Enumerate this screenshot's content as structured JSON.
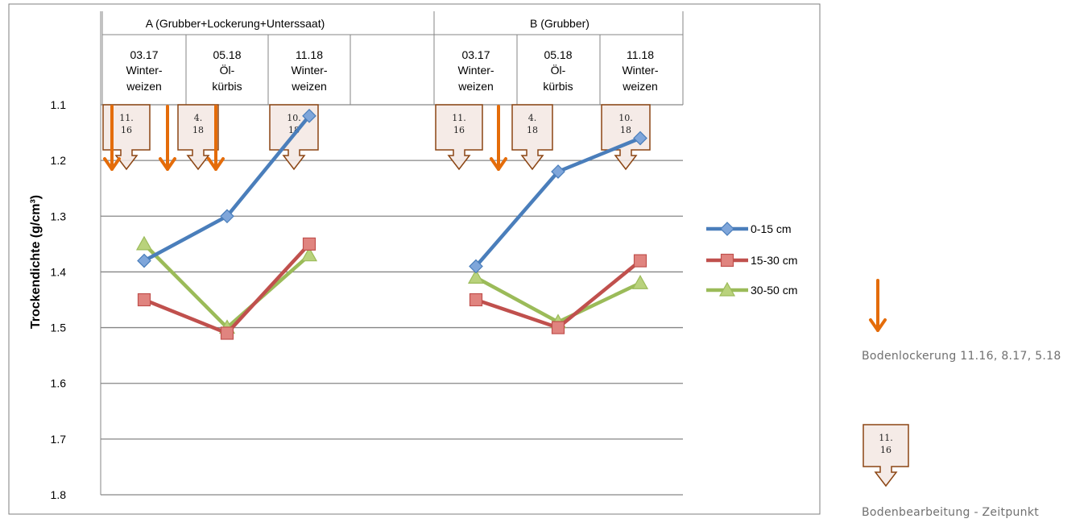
{
  "chart_data": {
    "type": "line",
    "ylabel": "Trockendichte (g/cm³)",
    "ylim": [
      1.8,
      1.1
    ],
    "y_reversed": true,
    "yticks": [
      "1.1",
      "1.2",
      "1.3",
      "1.4",
      "1.5",
      "1.6",
      "1.7",
      "1.8"
    ],
    "grid": true,
    "legend_position": "right",
    "groups": [
      {
        "title": "A (Grubber+Lockerung+Unterssaat)",
        "categories": [
          {
            "date": "03.17",
            "crop_line1": "Winter-",
            "crop_line2": "weizen"
          },
          {
            "date": "05.18",
            "crop_line1": "Öl-",
            "crop_line2": "kürbis"
          },
          {
            "date": "11.18",
            "crop_line1": "Winter-",
            "crop_line2": "weizen"
          }
        ],
        "tillage_markers": [
          {
            "line1": "11.",
            "line2": "16"
          },
          {
            "line1": "4.",
            "line2": "18"
          },
          {
            "line1": "10.",
            "line2": "18"
          }
        ]
      },
      {
        "title": "B (Grubber)",
        "categories": [
          {
            "date": "03.17",
            "crop_line1": "Winter-",
            "crop_line2": "weizen"
          },
          {
            "date": "05.18",
            "crop_line1": "Öl-",
            "crop_line2": "kürbis"
          },
          {
            "date": "11.18",
            "crop_line1": "Winter-",
            "crop_line2": "weizen"
          }
        ],
        "tillage_markers": [
          {
            "line1": "11.",
            "line2": "16"
          },
          {
            "line1": "4.",
            "line2": "18"
          },
          {
            "line1": "10.",
            "line2": "18"
          }
        ]
      }
    ],
    "series": [
      {
        "name": "0-15 cm",
        "color": "#4A7EBB",
        "marker": "diamond",
        "values_A": [
          1.38,
          1.3,
          1.12
        ],
        "values_B": [
          1.39,
          1.22,
          1.16
        ]
      },
      {
        "name": "15-30 cm",
        "color": "#C0504D",
        "marker": "square",
        "values_A": [
          1.45,
          1.51,
          1.35
        ],
        "values_B": [
          1.45,
          1.5,
          1.38
        ]
      },
      {
        "name": "30-50 cm",
        "color": "#9BBB59",
        "marker": "triangle",
        "values_A": [
          1.35,
          1.5,
          1.37
        ],
        "values_B": [
          1.41,
          1.49,
          1.42
        ]
      }
    ],
    "loosening_arrow_count_A": 4,
    "loosening_arrow_count_B": 1
  },
  "side_legend": {
    "arrow_label": "Bodenlockerung 11.16, 8.17, 5.18",
    "box_label": "Bodenbearbeitung - Zeitpunkt",
    "box_line1": "11.",
    "box_line2": "16"
  },
  "colors": {
    "arrow": "#E46C0A",
    "box_border": "#8B4513",
    "box_fill": "#F3E8E3",
    "grid": "#868686",
    "frame": "#7F7F7F"
  }
}
